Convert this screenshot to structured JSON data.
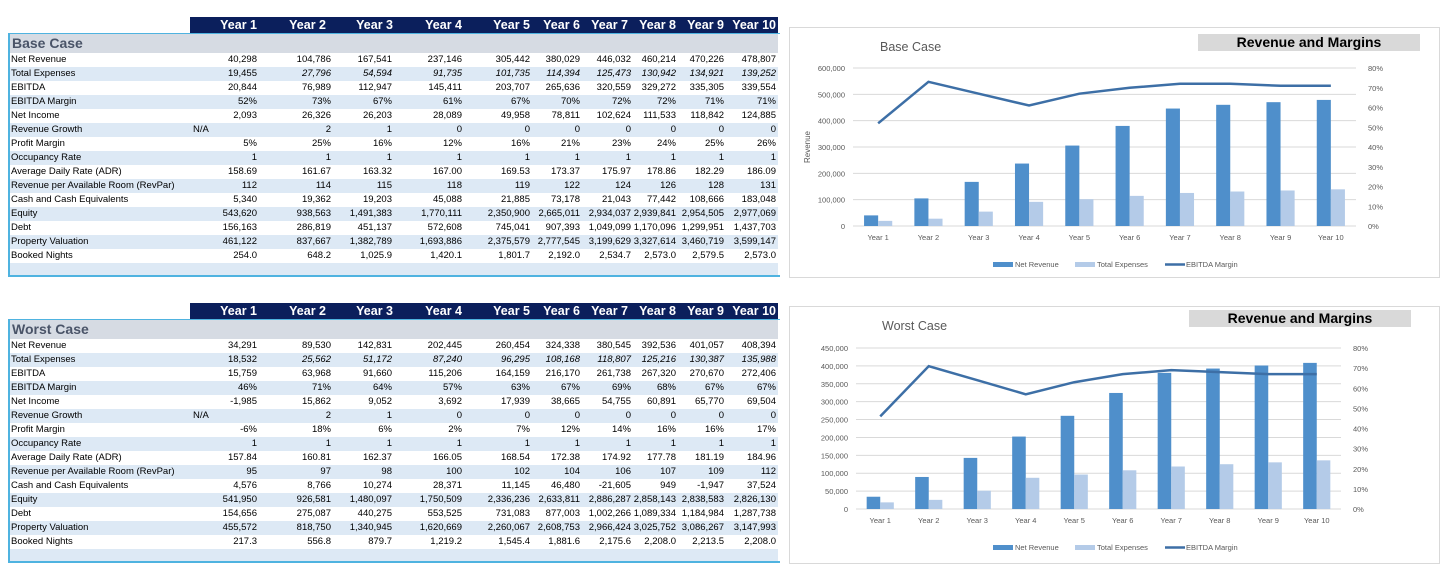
{
  "years": [
    "Year 1",
    "Year 2",
    "Year 3",
    "Year 4",
    "Year 5",
    "Year 6",
    "Year 7",
    "Year 8",
    "Year 9",
    "Year 10"
  ],
  "tables": [
    {
      "title": "Base Case",
      "rows": [
        {
          "label": "Net Revenue",
          "values": [
            "40,298",
            "104,786",
            "167,541",
            "237,146",
            "305,442",
            "380,029",
            "446,032",
            "460,214",
            "470,226",
            "478,807"
          ]
        },
        {
          "label": "Total Expenses",
          "values": [
            "19,455",
            "27,796",
            "54,594",
            "91,735",
            "101,735",
            "114,394",
            "125,473",
            "130,942",
            "134,921",
            "139,252"
          ],
          "italic_from": 1
        },
        {
          "label": "EBITDA",
          "values": [
            "20,844",
            "76,989",
            "112,947",
            "145,411",
            "203,707",
            "265,636",
            "320,559",
            "329,272",
            "335,305",
            "339,554"
          ]
        },
        {
          "label": "EBITDA Margin",
          "values": [
            "52%",
            "73%",
            "67%",
            "61%",
            "67%",
            "70%",
            "72%",
            "72%",
            "71%",
            "71%"
          ]
        },
        {
          "label": "Net Income",
          "values": [
            "2,093",
            "26,326",
            "26,203",
            "28,089",
            "49,958",
            "78,811",
            "102,624",
            "111,533",
            "118,842",
            "124,885"
          ]
        },
        {
          "label": "Revenue Growth",
          "na": "N/A",
          "values": [
            "",
            "2",
            "1",
            "0",
            "0",
            "0",
            "0",
            "0",
            "0",
            "0"
          ]
        },
        {
          "label": "Profit Margin",
          "values": [
            "5%",
            "25%",
            "16%",
            "12%",
            "16%",
            "21%",
            "23%",
            "24%",
            "25%",
            "26%"
          ]
        },
        {
          "label": "Occupancy Rate",
          "values": [
            "1",
            "1",
            "1",
            "1",
            "1",
            "1",
            "1",
            "1",
            "1",
            "1"
          ]
        },
        {
          "label": "Average Daily Rate (ADR)",
          "values": [
            "158.69",
            "161.67",
            "163.32",
            "167.00",
            "169.53",
            "173.37",
            "175.97",
            "178.86",
            "182.29",
            "186.09"
          ]
        },
        {
          "label": "Revenue per Available Room (RevPar)",
          "values": [
            "112",
            "114",
            "115",
            "118",
            "119",
            "122",
            "124",
            "126",
            "128",
            "131"
          ]
        },
        {
          "label": "Cash and Cash Equivalents",
          "values": [
            "5,340",
            "19,362",
            "19,203",
            "45,088",
            "21,885",
            "73,178",
            "21,043",
            "77,442",
            "108,666",
            "183,048"
          ]
        },
        {
          "label": "Equity",
          "values": [
            "543,620",
            "938,563",
            "1,491,383",
            "1,770,111",
            "2,350,900",
            "2,665,011",
            "2,934,037",
            "2,939,841",
            "2,954,505",
            "2,977,069"
          ]
        },
        {
          "label": "Debt",
          "values": [
            "156,163",
            "286,819",
            "451,137",
            "572,608",
            "745,041",
            "907,393",
            "1,049,099",
            "1,170,096",
            "1,299,951",
            "1,437,703"
          ]
        },
        {
          "label": "Property Valuation",
          "values": [
            "461,122",
            "837,667",
            "1,382,789",
            "1,693,886",
            "2,375,579",
            "2,777,545",
            "3,199,629",
            "3,327,614",
            "3,460,719",
            "3,599,147"
          ]
        },
        {
          "label": "Booked Nights",
          "values": [
            "254.0",
            "648.2",
            "1,025.9",
            "1,420.1",
            "1,801.7",
            "2,192.0",
            "2,534.7",
            "2,573.0",
            "2,579.5",
            "2,573.0"
          ]
        }
      ]
    },
    {
      "title": "Worst Case",
      "rows": [
        {
          "label": "Net Revenue",
          "values": [
            "34,291",
            "89,530",
            "142,831",
            "202,445",
            "260,454",
            "324,338",
            "380,545",
            "392,536",
            "401,057",
            "408,394"
          ]
        },
        {
          "label": "Total Expenses",
          "values": [
            "18,532",
            "25,562",
            "51,172",
            "87,240",
            "96,295",
            "108,168",
            "118,807",
            "125,216",
            "130,387",
            "135,988"
          ],
          "italic_from": 1
        },
        {
          "label": "EBITDA",
          "values": [
            "15,759",
            "63,968",
            "91,660",
            "115,206",
            "164,159",
            "216,170",
            "261,738",
            "267,320",
            "270,670",
            "272,406"
          ]
        },
        {
          "label": "EBITDA Margin",
          "values": [
            "46%",
            "71%",
            "64%",
            "57%",
            "63%",
            "67%",
            "69%",
            "68%",
            "67%",
            "67%"
          ]
        },
        {
          "label": "Net Income",
          "values": [
            "-1,985",
            "15,862",
            "9,052",
            "3,692",
            "17,939",
            "38,665",
            "54,755",
            "60,891",
            "65,770",
            "69,504"
          ]
        },
        {
          "label": "Revenue Growth",
          "na": "N/A",
          "values": [
            "",
            "2",
            "1",
            "0",
            "0",
            "0",
            "0",
            "0",
            "0",
            "0"
          ]
        },
        {
          "label": "Profit Margin",
          "values": [
            "-6%",
            "18%",
            "6%",
            "2%",
            "7%",
            "12%",
            "14%",
            "16%",
            "16%",
            "17%"
          ]
        },
        {
          "label": "Occupancy Rate",
          "values": [
            "1",
            "1",
            "1",
            "1",
            "1",
            "1",
            "1",
            "1",
            "1",
            "1"
          ]
        },
        {
          "label": "Average Daily Rate (ADR)",
          "values": [
            "157.84",
            "160.81",
            "162.37",
            "166.05",
            "168.54",
            "172.38",
            "174.92",
            "177.78",
            "181.19",
            "184.96"
          ]
        },
        {
          "label": "Revenue per Available Room (RevPar)",
          "values": [
            "95",
            "97",
            "98",
            "100",
            "102",
            "104",
            "106",
            "107",
            "109",
            "112"
          ]
        },
        {
          "label": "Cash and Cash Equivalents",
          "values": [
            "4,576",
            "8,766",
            "10,274",
            "28,371",
            "11,145",
            "46,480",
            "-21,605",
            "949",
            "-1,947",
            "37,524"
          ]
        },
        {
          "label": "Equity",
          "values": [
            "541,950",
            "926,581",
            "1,480,097",
            "1,750,509",
            "2,336,236",
            "2,633,811",
            "2,886,287",
            "2,858,143",
            "2,838,583",
            "2,826,130"
          ]
        },
        {
          "label": "Debt",
          "values": [
            "154,656",
            "275,087",
            "440,275",
            "553,525",
            "731,083",
            "877,003",
            "1,002,266",
            "1,089,334",
            "1,184,984",
            "1,287,738"
          ]
        },
        {
          "label": "Property Valuation",
          "values": [
            "455,572",
            "818,750",
            "1,340,945",
            "1,620,669",
            "2,260,067",
            "2,608,753",
            "2,966,424",
            "3,025,752",
            "3,086,267",
            "3,147,993"
          ]
        },
        {
          "label": "Booked Nights",
          "values": [
            "217.3",
            "556.8",
            "879.7",
            "1,219.2",
            "1,545.4",
            "1,881.6",
            "2,175.6",
            "2,208.0",
            "2,213.5",
            "2,208.0"
          ]
        }
      ]
    }
  ],
  "colors": {
    "header_bg": "#0b1f5c",
    "net_revenue": "#4f8fcb",
    "total_expenses": "#b4cbe8",
    "ebitda_margin": "#3d6fa6",
    "stripe": "#dde9f5",
    "frame": "#4fb3e0"
  },
  "chart_data": [
    {
      "type": "bar",
      "title": "Revenue and Margins",
      "subtitle": "Base Case",
      "xlabel": "",
      "ylabel": "Revenue",
      "y2label": "",
      "categories": [
        "Year 1",
        "Year 2",
        "Year 3",
        "Year 4",
        "Year 5",
        "Year 6",
        "Year 7",
        "Year 8",
        "Year 9",
        "Year 10"
      ],
      "ylim": [
        0,
        600000
      ],
      "yticks": [
        "0",
        "100,000",
        "200,000",
        "300,000",
        "400,000",
        "500,000",
        "600,000"
      ],
      "y2lim": [
        0,
        0.8
      ],
      "y2ticks": [
        "0%",
        "10%",
        "20%",
        "30%",
        "40%",
        "50%",
        "60%",
        "70%",
        "80%"
      ],
      "grid": true,
      "legend": "bottom",
      "series": [
        {
          "name": "Net Revenue",
          "kind": "bar",
          "axis": "left",
          "values": [
            40298,
            104786,
            167541,
            237146,
            305442,
            380029,
            446032,
            460214,
            470226,
            478807
          ]
        },
        {
          "name": "Total Expenses",
          "kind": "bar",
          "axis": "left",
          "values": [
            19455,
            27796,
            54594,
            91735,
            101735,
            114394,
            125473,
            130942,
            134921,
            139252
          ]
        },
        {
          "name": "EBITDA Margin",
          "kind": "line",
          "axis": "right",
          "values": [
            0.52,
            0.73,
            0.67,
            0.61,
            0.67,
            0.7,
            0.72,
            0.72,
            0.71,
            0.71
          ]
        }
      ]
    },
    {
      "type": "bar",
      "title": "Revenue and Margins",
      "subtitle": "Worst Case",
      "xlabel": "",
      "ylabel": "",
      "categories": [
        "Year 1",
        "Year 2",
        "Year 3",
        "Year 4",
        "Year 5",
        "Year 6",
        "Year 7",
        "Year 8",
        "Year 9",
        "Year 10"
      ],
      "ylim": [
        0,
        450000
      ],
      "yticks": [
        "0",
        "50,000",
        "100,000",
        "150,000",
        "200,000",
        "250,000",
        "300,000",
        "350,000",
        "400,000",
        "450,000"
      ],
      "y2lim": [
        0,
        0.8
      ],
      "y2ticks": [
        "0%",
        "10%",
        "20%",
        "30%",
        "40%",
        "50%",
        "60%",
        "70%",
        "80%"
      ],
      "grid": true,
      "legend": "bottom",
      "series": [
        {
          "name": "Net Revenue",
          "kind": "bar",
          "axis": "left",
          "values": [
            34291,
            89530,
            142831,
            202445,
            260454,
            324338,
            380545,
            392536,
            401057,
            408394
          ]
        },
        {
          "name": "Total Expenses",
          "kind": "bar",
          "axis": "left",
          "values": [
            18532,
            25562,
            51172,
            87240,
            96295,
            108168,
            118807,
            125216,
            130387,
            135988
          ]
        },
        {
          "name": "EBITDA Margin",
          "kind": "line",
          "axis": "right",
          "values": [
            0.46,
            0.71,
            0.64,
            0.57,
            0.63,
            0.67,
            0.69,
            0.68,
            0.67,
            0.67
          ]
        }
      ]
    }
  ]
}
